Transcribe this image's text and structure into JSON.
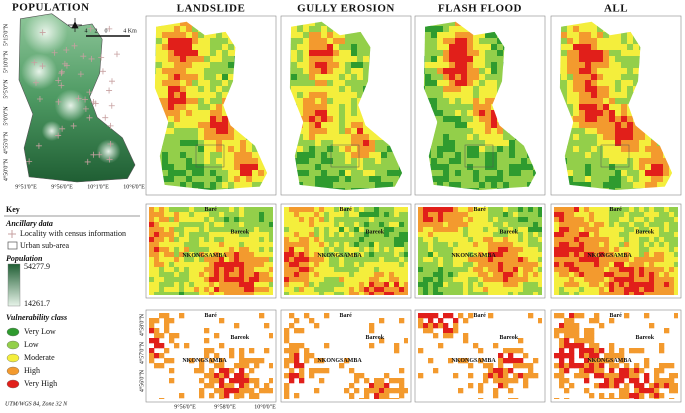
{
  "population_map": {
    "title": "POPULATION",
    "scale_ticks": [
      "4",
      "2",
      "0",
      "4 Km"
    ],
    "lat_labels": [
      "5°15'0\"N",
      "5°10'0\"N",
      "5°5'0\"N",
      "5°0'0\"N",
      "4°55'0\"N",
      "4°50'0\"N"
    ],
    "lon_labels": [
      "9°51'0\"E",
      "9°56'0\"E",
      "10°1'0\"E",
      "10°6'0\"E"
    ]
  },
  "hazard_maps": [
    {
      "title": "LANDSLIDE"
    },
    {
      "title": "GULLY EROSION"
    },
    {
      "title": "FLASH FLOOD"
    },
    {
      "title": "ALL"
    }
  ],
  "places": [
    "Baré",
    "Bareok",
    "NKONGSAMBA"
  ],
  "zoom_axes": {
    "lat_labels": [
      "4°58'0\"N",
      "4°57'0\"N",
      "4°56'0\"N"
    ],
    "lon_labels": [
      "9°56'0\"E",
      "9°58'0\"E",
      "10°0'0\"E"
    ]
  },
  "key": {
    "title": "Key",
    "ancillary_title": "Ancillary data",
    "locality": "Locality with census information",
    "urban": "Urban sub-area",
    "population_title": "Population",
    "population_max": "54277.9",
    "population_min": "14261.7",
    "vulnerability_title": "Vulnerability class",
    "classes": [
      {
        "label": "Very Low",
        "color": "#2f9b2f"
      },
      {
        "label": "Low",
        "color": "#93cf4a"
      },
      {
        "label": "Moderate",
        "color": "#f4ee3c"
      },
      {
        "label": "High",
        "color": "#f39a2e"
      },
      {
        "label": "Very High",
        "color": "#e11f1a"
      }
    ]
  },
  "crs": "UTM/WGS 84, Zone 32 N"
}
